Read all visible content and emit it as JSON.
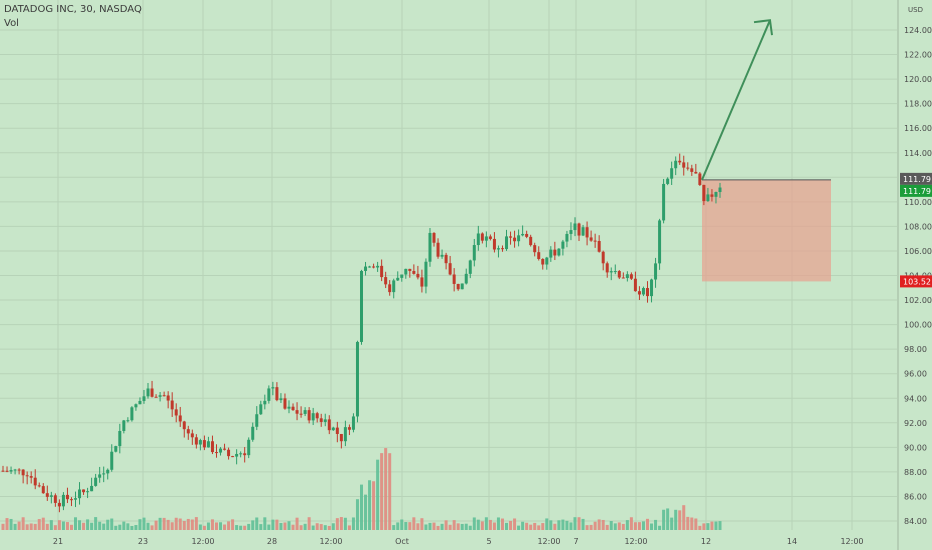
{
  "header": {
    "title": "DATADOG INC, 30, NASDAQ",
    "volume_label": "Vol"
  },
  "axis": {
    "currency": "USD"
  },
  "price_tags": {
    "current_gray": "111.79",
    "current_green": "111.79",
    "stop_red": "103.52"
  },
  "colors": {
    "background": "#c8e6c9",
    "up": "#2e9e6b",
    "down": "#c0392b",
    "vol_up": "#5fbf97",
    "vol_down": "#e08a80",
    "arrow": "#3f8f5a",
    "risk_box": "#e8a08e",
    "tag_gray": "#5a5a5a",
    "tag_green": "#1b9d3a",
    "tag_red": "#e02020"
  },
  "chart_data": {
    "type": "candlestick",
    "title": "DATADOG INC, 30, NASDAQ",
    "ylabel": "USD",
    "ylim": [
      83,
      126
    ],
    "yticks": [
      "84.00",
      "86.00",
      "88.00",
      "90.00",
      "92.00",
      "94.00",
      "96.00",
      "98.00",
      "100.00",
      "102.00",
      "104.00",
      "106.00",
      "108.00",
      "110.00",
      "112.00",
      "114.00",
      "116.00",
      "118.00",
      "120.00",
      "122.00",
      "124.00"
    ],
    "xticks": [
      "21",
      "23",
      "12:00",
      "28",
      "12:00",
      "Oct",
      "5",
      "12:00",
      "7",
      "12:00",
      "12",
      "14",
      "12:00"
    ],
    "close_path": [
      {
        "i": 0,
        "p": 88.1
      },
      {
        "i": 6,
        "p": 88.0
      },
      {
        "i": 10,
        "p": 86.4
      },
      {
        "i": 14,
        "p": 85.6
      },
      {
        "i": 20,
        "p": 86.3
      },
      {
        "i": 26,
        "p": 88.6
      },
      {
        "i": 30,
        "p": 92.2
      },
      {
        "i": 36,
        "p": 94.6
      },
      {
        "i": 40,
        "p": 94.2
      },
      {
        "i": 46,
        "p": 91.0
      },
      {
        "i": 52,
        "p": 89.9
      },
      {
        "i": 56,
        "p": 89.3
      },
      {
        "i": 60,
        "p": 89.7
      },
      {
        "i": 66,
        "p": 95.0
      },
      {
        "i": 70,
        "p": 93.1
      },
      {
        "i": 76,
        "p": 92.6
      },
      {
        "i": 80,
        "p": 92.2
      },
      {
        "i": 84,
        "p": 90.8
      },
      {
        "i": 87,
        "p": 92.4
      },
      {
        "i": 89,
        "p": 104.6
      },
      {
        "i": 92,
        "p": 105.0
      },
      {
        "i": 96,
        "p": 103.0
      },
      {
        "i": 100,
        "p": 104.7
      },
      {
        "i": 104,
        "p": 103.2
      },
      {
        "i": 106,
        "p": 107.2
      },
      {
        "i": 110,
        "p": 104.6
      },
      {
        "i": 114,
        "p": 102.9
      },
      {
        "i": 118,
        "p": 107.6
      },
      {
        "i": 122,
        "p": 106.3
      },
      {
        "i": 126,
        "p": 106.9
      },
      {
        "i": 130,
        "p": 107.2
      },
      {
        "i": 134,
        "p": 105.2
      },
      {
        "i": 138,
        "p": 106.2
      },
      {
        "i": 142,
        "p": 107.9
      },
      {
        "i": 146,
        "p": 107.1
      },
      {
        "i": 150,
        "p": 104.7
      },
      {
        "i": 154,
        "p": 104.0
      },
      {
        "i": 158,
        "p": 102.8
      },
      {
        "i": 160,
        "p": 102.4
      },
      {
        "i": 162,
        "p": 104.6
      },
      {
        "i": 164,
        "p": 111.6
      },
      {
        "i": 168,
        "p": 113.5
      },
      {
        "i": 172,
        "p": 112.1
      },
      {
        "i": 174,
        "p": 109.8
      },
      {
        "i": 178,
        "p": 111.4
      }
    ],
    "volume": {
      "typical": "low",
      "spike_region": "Sep 30 - Oct 1"
    },
    "annotations": [
      {
        "type": "arrow",
        "from_price": 111.79,
        "to_price": 124.8,
        "direction": "up"
      },
      {
        "type": "long_position_risk_box",
        "top": 111.79,
        "bottom": 103.52
      }
    ]
  }
}
